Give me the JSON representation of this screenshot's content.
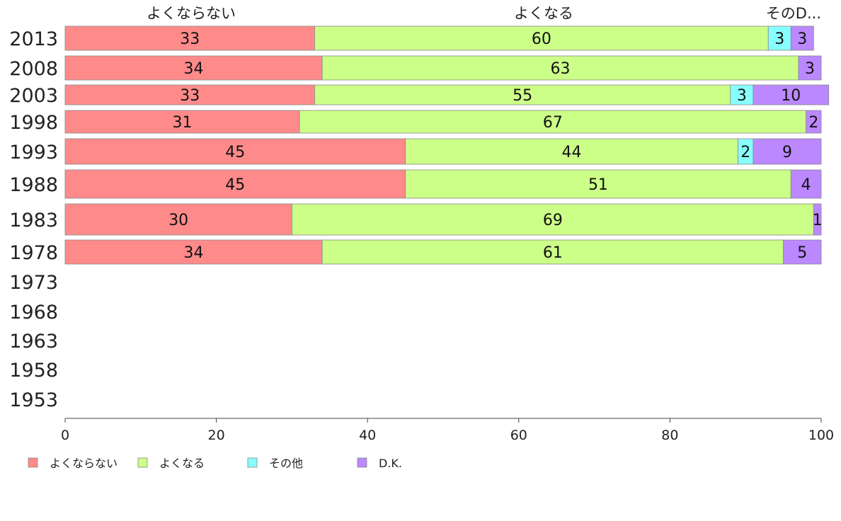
{
  "chart_data": {
    "type": "bar",
    "orientation": "horizontal",
    "stacked": true,
    "title": "",
    "xlabel": "",
    "ylabel": "",
    "xlim": [
      0,
      100
    ],
    "x_ticks": [
      0,
      20,
      40,
      60,
      80,
      100
    ],
    "categories": [
      "2013",
      "2008",
      "2003",
      "1998",
      "1993",
      "1988",
      "1983",
      "1978",
      "1973",
      "1968",
      "1963",
      "1958",
      "1953"
    ],
    "series": [
      {
        "name": "よくならない",
        "color": "#ff8a8a",
        "values": [
          33,
          34,
          33,
          31,
          45,
          45,
          30,
          34,
          null,
          null,
          null,
          null,
          null
        ]
      },
      {
        "name": "よくなる",
        "color": "#ccff88",
        "values": [
          60,
          63,
          55,
          67,
          44,
          51,
          69,
          61,
          null,
          null,
          null,
          null,
          null
        ]
      },
      {
        "name": "その他",
        "color": "#88ffff",
        "values": [
          3,
          0,
          3,
          0,
          2,
          0,
          0,
          0,
          null,
          null,
          null,
          null,
          null
        ]
      },
      {
        "name": "D.K.",
        "color": "#bb88ff",
        "values": [
          3,
          3,
          10,
          2,
          9,
          4,
          1,
          5,
          null,
          null,
          null,
          null,
          null
        ]
      }
    ],
    "column_headers": [
      "よくならない",
      "よくなる",
      "そのD..."
    ],
    "legend_position": "bottom-left",
    "grid": false
  }
}
